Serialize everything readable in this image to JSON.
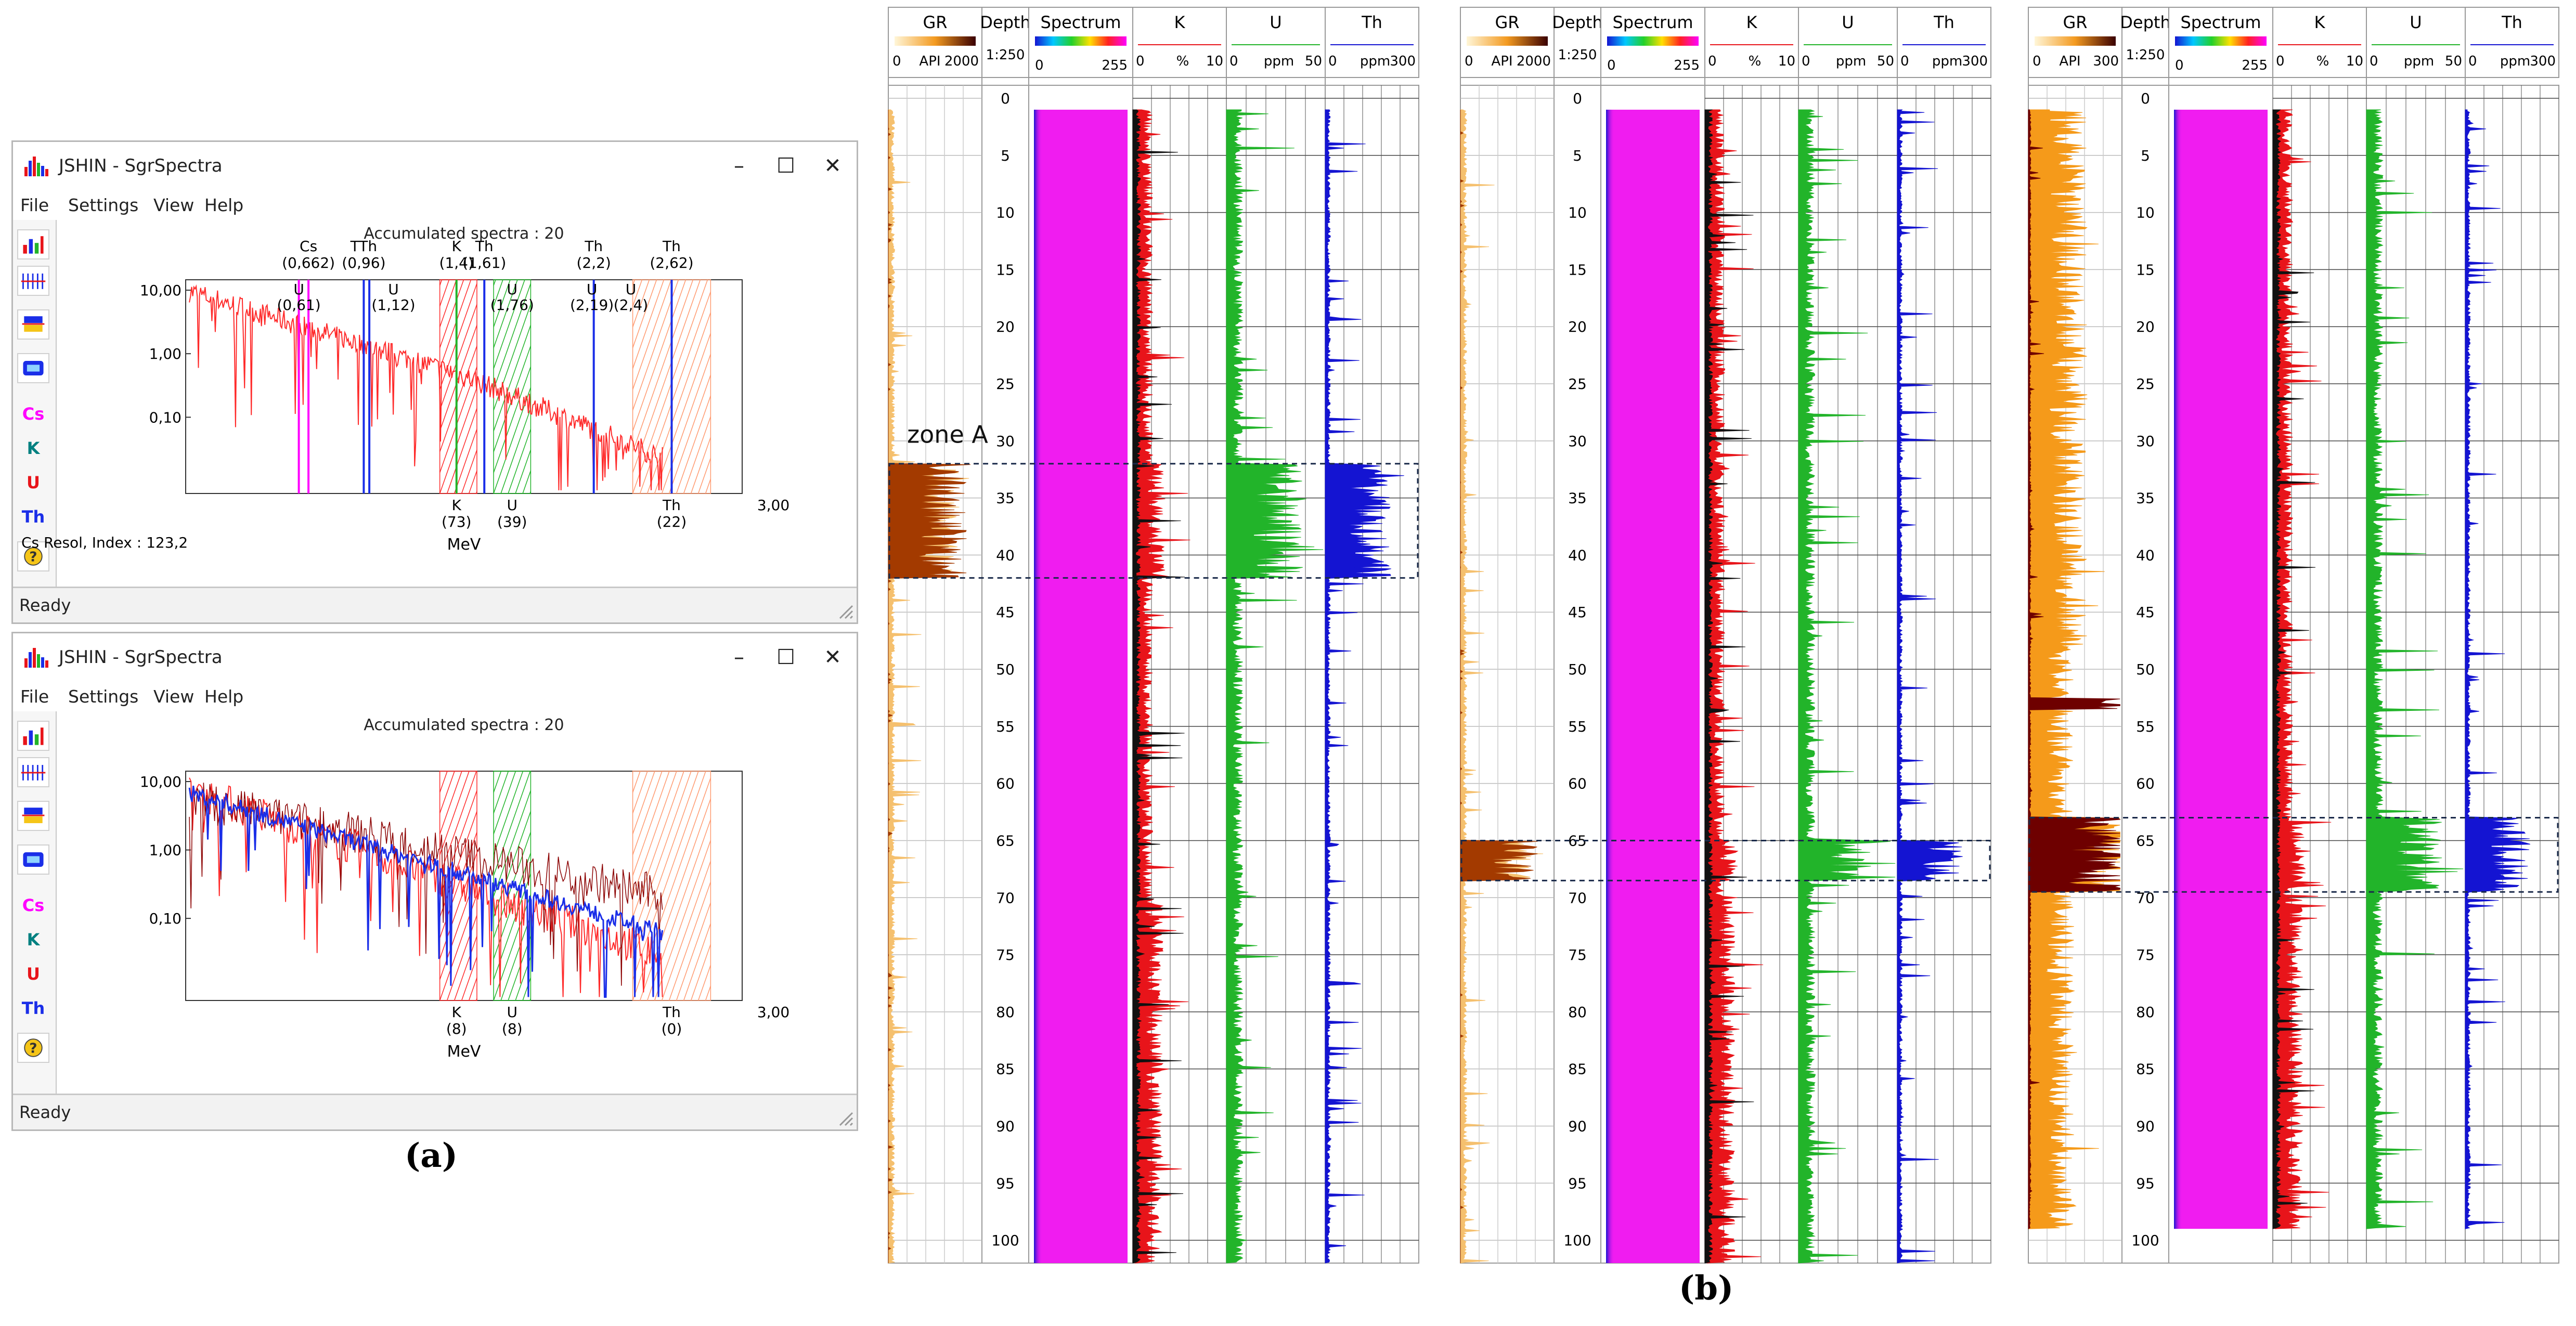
{
  "caption_a": "(a)",
  "caption_b": "(b)",
  "windows": [
    {
      "title": "JSHIN - SgrSpectra",
      "menu": [
        "File",
        "Settings",
        "View",
        "Help"
      ],
      "toolbar": [
        "Cs",
        "K",
        "U",
        "Th"
      ],
      "plot_title": "Accumulated spectra : 20",
      "xlabel": "MeV",
      "x_end_label": "3,00",
      "y_ticks": [
        "10,00",
        "1,00",
        "0,10"
      ],
      "resolution_text": "Cs Resol, Index : 123,2",
      "top_labels": [
        {
          "l1": "Cs",
          "l2": "(0,662)",
          "x": 0.662
        },
        {
          "l1": "TTh",
          "l2": "(0,96)",
          "x": 0.96
        },
        {
          "l1": "K",
          "l2": "(1,4)",
          "x": 1.46
        },
        {
          "l1": "Th",
          "l2": "(1,61)",
          "x": 1.61
        },
        {
          "l1": "Th",
          "l2": "(2,2)",
          "x": 2.2
        },
        {
          "l1": "Th",
          "l2": "(2,62)",
          "x": 2.62
        }
      ],
      "mid_labels": [
        {
          "l1": "U",
          "l2": "(0,61)",
          "x": 0.61
        },
        {
          "l1": "U",
          "l2": "(1,12)",
          "x": 1.12
        },
        {
          "l1": "U",
          "l2": "(1,76)",
          "x": 1.76
        },
        {
          "l1": "U",
          "l2": "(2,19)",
          "x": 2.19
        },
        {
          "l1": "U",
          "l2": "(2,4)",
          "x": 2.4
        }
      ],
      "bottom_labels": [
        {
          "l1": "K",
          "l2": "(73)",
          "x": 1.46
        },
        {
          "l1": "U",
          "l2": "(39)",
          "x": 1.76
        },
        {
          "l1": "Th",
          "l2": "(22)",
          "x": 2.62
        }
      ],
      "status": "Ready"
    },
    {
      "title": "JSHIN - SgrSpectra",
      "menu": [
        "File",
        "Settings",
        "View",
        "Help"
      ],
      "toolbar": [
        "Cs",
        "K",
        "U",
        "Th"
      ],
      "plot_title": "Accumulated spectra : 20",
      "xlabel": "MeV",
      "x_end_label": "3,00",
      "y_ticks": [
        "10,00",
        "1,00",
        "0,10"
      ],
      "resolution_text": "",
      "top_labels": [],
      "mid_labels": [],
      "bottom_labels": [
        {
          "l1": "K",
          "l2": "(8)",
          "x": 1.46
        },
        {
          "l1": "U",
          "l2": "(8)",
          "x": 1.76
        },
        {
          "l1": "Th",
          "l2": "(0)",
          "x": 2.62
        }
      ],
      "status": "Ready"
    }
  ],
  "logs": {
    "headers": {
      "gr": "GR",
      "depth": "Depth",
      "spectrum": "Spectrum",
      "k": "K",
      "u": "U",
      "th": "Th"
    },
    "scales": {
      "depth_scale": "1:250",
      "spectrum": [
        "0",
        "255"
      ],
      "k": [
        "0",
        "%",
        "10"
      ],
      "u": [
        "0",
        "ppm",
        "50"
      ],
      "th": [
        "0",
        "ppm",
        "300"
      ]
    },
    "depth_ticks": [
      "0",
      "5",
      "10",
      "15",
      "20",
      "25",
      "30",
      "35",
      "40",
      "45",
      "50",
      "55",
      "60",
      "65",
      "70",
      "75",
      "80",
      "85",
      "90",
      "95",
      "100"
    ],
    "panels": [
      {
        "gr_scale": [
          "0",
          "API",
          "2000"
        ],
        "zone_label": "zone A",
        "zone": [
          32,
          42
        ],
        "end_depth": 102,
        "gr_scheme": "light"
      },
      {
        "gr_scale": [
          "0",
          "API",
          "2000"
        ],
        "zone_label": "",
        "zone": [
          65,
          68.5
        ],
        "end_depth": 102,
        "gr_scheme": "light"
      },
      {
        "gr_scale": [
          "0",
          "API",
          "300"
        ],
        "zone_label": "",
        "zone": [
          63,
          69.5
        ],
        "end_depth": 99,
        "gr_scheme": "dark"
      }
    ]
  },
  "colors": {
    "k": "#e8141a",
    "u": "#22b42a",
    "th": "#1414d2",
    "spectrum": "#f01cf0",
    "gr_light": "#f5b55a",
    "gr_dark": "#7a0000",
    "accent_red": "#ff2a2a",
    "accent_blue": "#1a2ee8"
  }
}
